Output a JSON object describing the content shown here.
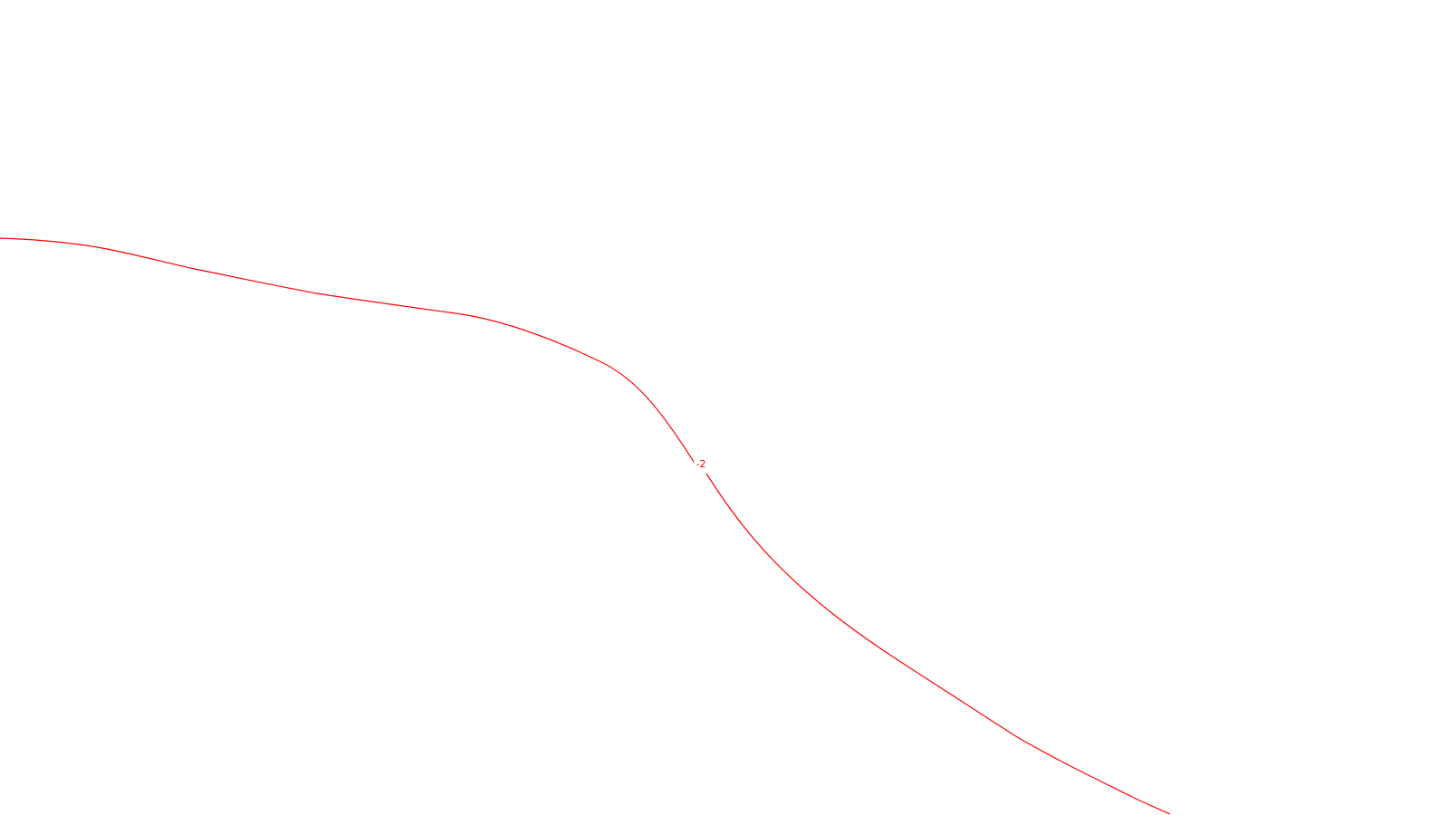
{
  "map": {
    "background_color": "#ffffff",
    "contours": [
      {
        "label": "-2",
        "color": "#ff0000"
      }
    ]
  }
}
